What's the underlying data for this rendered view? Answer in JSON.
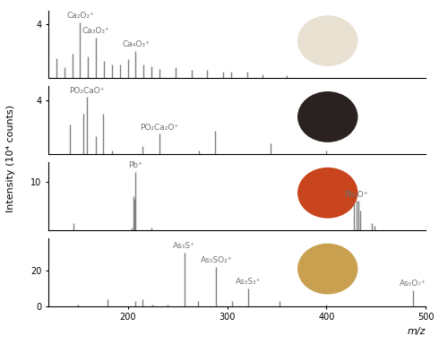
{
  "xlabel": "m/z",
  "ylabel": "Intensity (10⁴ counts)",
  "chart_data": [
    {
      "type": "stem",
      "color": "#808080",
      "tick_labels": "y",
      "xlim": [
        120,
        500
      ],
      "ylim": [
        0,
        5
      ],
      "yticks": [
        4
      ],
      "x": [
        128,
        136,
        144,
        152,
        160,
        168,
        176,
        184,
        192,
        200,
        208,
        216,
        224,
        232,
        248,
        264,
        280,
        296,
        304,
        320,
        336,
        360
      ],
      "values": [
        1.5,
        0.8,
        1.8,
        4.1,
        1.6,
        3.0,
        1.3,
        1.0,
        1.0,
        1.4,
        2.0,
        1.0,
        0.9,
        0.7,
        0.8,
        0.6,
        0.6,
        0.5,
        0.5,
        0.5,
        0.3,
        0.2
      ],
      "annotations": [
        {
          "text": "Ca₂O₂⁺",
          "x": 152
        },
        {
          "text": "Ca₃O₃⁺",
          "x": 168
        },
        {
          "text": "Ca₄O₃⁺",
          "x": 208
        }
      ]
    },
    {
      "type": "stem",
      "color": "#808080",
      "tick_labels": "y",
      "xlim": [
        120,
        500
      ],
      "ylim": [
        0,
        5
      ],
      "yticks": [
        4
      ],
      "x": [
        142,
        155,
        159,
        168,
        175,
        184,
        215,
        232,
        272,
        288,
        344,
        400
      ],
      "values": [
        2.2,
        3.0,
        4.2,
        1.3,
        3.0,
        0.3,
        0.6,
        1.5,
        0.3,
        1.7,
        0.8,
        0.3
      ],
      "annotations": [
        {
          "text": "PO₂CaO⁺",
          "x": 159
        },
        {
          "text": "PO₂Ca₂O⁺",
          "x": 232
        }
      ]
    },
    {
      "type": "stem",
      "color": "#808080",
      "tick_labels": "y",
      "xlim": [
        120,
        500
      ],
      "ylim": [
        0,
        14
      ],
      "yticks": [
        10
      ],
      "x": [
        145,
        204,
        206,
        207,
        208,
        224,
        428,
        430,
        432,
        434,
        446,
        448
      ],
      "values": [
        1.5,
        0.5,
        7.0,
        6.5,
        12.0,
        0.5,
        5.5,
        6.0,
        6.0,
        4.0,
        1.5,
        1.0
      ],
      "annotations": [
        {
          "text": "Pb⁺",
          "x": 208
        },
        {
          "text": "Pb₂O⁺",
          "x": 430
        }
      ]
    },
    {
      "type": "stem",
      "color": "#808080",
      "xlim": [
        120,
        500
      ],
      "ylim": [
        0,
        38
      ],
      "yticks": [
        0,
        20
      ],
      "xticks": [
        200,
        300,
        400,
        500
      ],
      "x": [
        150,
        180,
        208,
        215,
        225,
        240,
        257,
        271,
        289,
        305,
        321,
        353,
        400,
        487
      ],
      "values": [
        1.0,
        4.0,
        3.0,
        4.0,
        1.0,
        1.0,
        30.0,
        3.0,
        22.0,
        3.0,
        10.0,
        3.0,
        1.0,
        9.0
      ],
      "annotations": [
        {
          "text": "As₃S⁺",
          "x": 257
        },
        {
          "text": "As₃SO₂⁺",
          "x": 289
        },
        {
          "text": "As₃S₃⁺",
          "x": 321
        },
        {
          "text": "As₅O₇⁺",
          "x": 487
        }
      ]
    }
  ]
}
